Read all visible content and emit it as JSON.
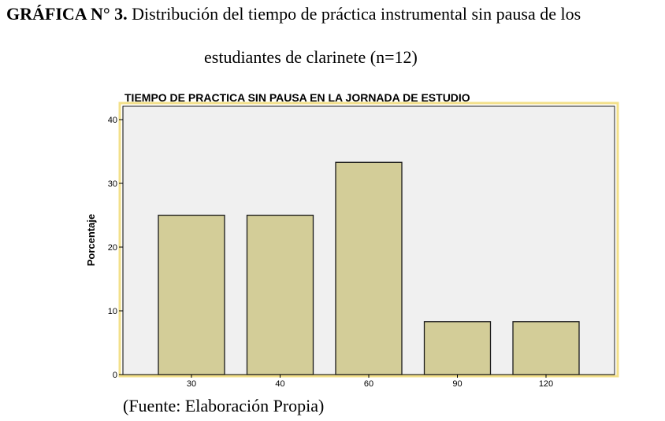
{
  "caption": {
    "label": "GRÁFICA N° 3.",
    "text_line1": " Distribución del tiempo de práctica instrumental sin pausa de los",
    "text_line2": "estudiantes de clarinete (n=12)"
  },
  "source": "(Fuente: Elaboración Propia)",
  "chart_data": {
    "type": "bar",
    "title": "TIEMPO DE PRACTICA SIN PAUSA EN LA JORNADA DE ESTUDIO",
    "xlabel": "",
    "ylabel": "Porcentaje",
    "categories": [
      "30",
      "40",
      "60",
      "90",
      "120"
    ],
    "values": [
      25.0,
      25.0,
      33.3,
      8.3,
      8.3
    ],
    "yticks": [
      "0",
      "10",
      "20",
      "30",
      "40"
    ],
    "ylim": [
      0,
      40
    ],
    "grid": false,
    "colors": {
      "bar_fill": "#d3cd98",
      "bar_stroke": "#1a1a1a",
      "plot_background": "#f0f0f0",
      "frame_border": "#f3e08a"
    }
  }
}
